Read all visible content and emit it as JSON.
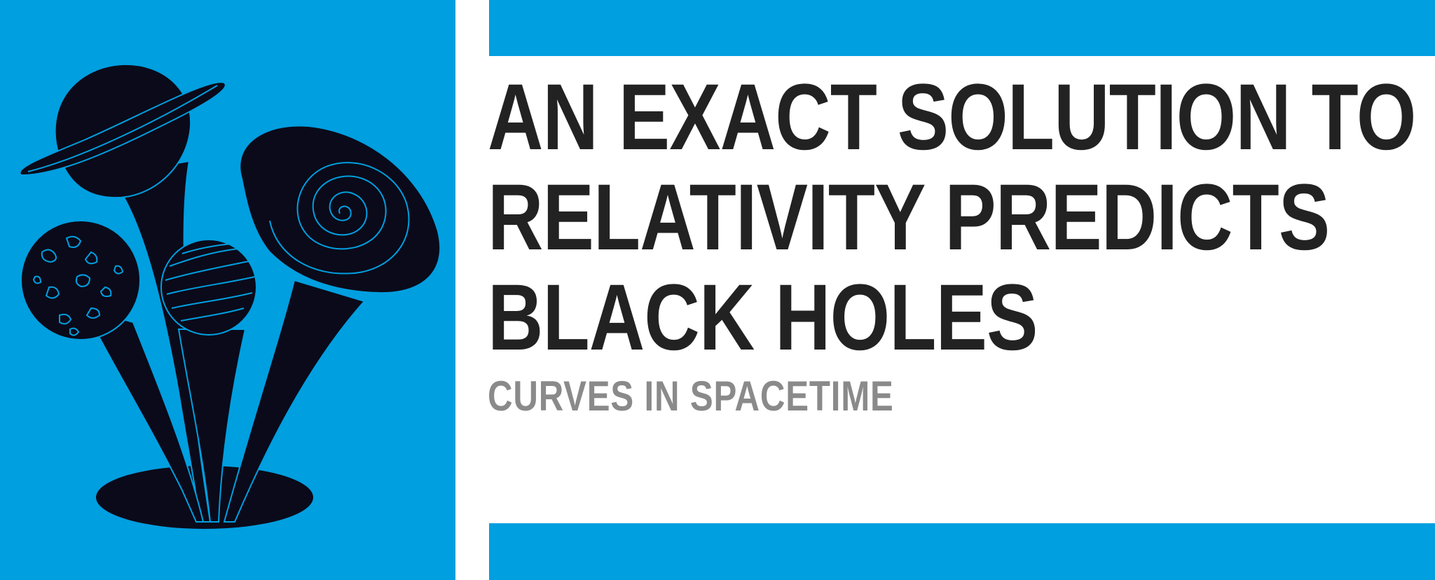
{
  "article": {
    "headline_lines": [
      "AN EXACT SOLUTION TO",
      "RELATIVITY PREDICTS",
      "BLACK HOLES"
    ],
    "subtitle": "CURVES IN SPACETIME"
  },
  "colors": {
    "accent_blue": "#009fe0",
    "ink": "#0a0a1a",
    "headline": "#222222",
    "subtitle": "#8a8a8a"
  },
  "illustration": {
    "icon": "planets-emerging-from-black-hole-illustration"
  }
}
